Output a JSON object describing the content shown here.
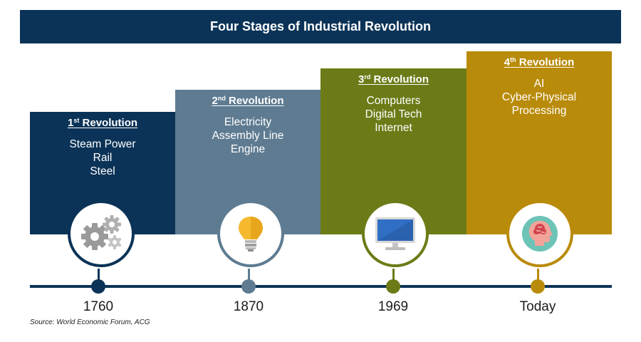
{
  "title": "Four Stages of Industrial Revolution",
  "stages": [
    {
      "num": "1",
      "suffix": "st",
      "label": "Revolution",
      "lines": [
        "Steam Power",
        "Rail",
        "Steel"
      ],
      "year": "1760",
      "icon": "gears-icon",
      "color": "#0b3357"
    },
    {
      "num": "2",
      "suffix": "nd",
      "label": "Revolution",
      "lines": [
        "Electricity",
        "Assembly Line",
        "Engine"
      ],
      "year": "1870",
      "icon": "lightbulb-icon",
      "color": "#5e7b91"
    },
    {
      "num": "3",
      "suffix": "rd",
      "label": "Revolution",
      "lines": [
        "Computers",
        "Digital Tech",
        "Internet"
      ],
      "year": "1969",
      "icon": "monitor-icon",
      "color": "#6c7b17"
    },
    {
      "num": "4",
      "suffix": "th",
      "label": "Revolution",
      "lines": [
        "AI",
        "Cyber-Physical",
        "Processing"
      ],
      "year": "Today",
      "icon": "brain-head-icon",
      "color": "#b98b0a"
    }
  ],
  "source": "Source: World Economic Forum, ACG"
}
